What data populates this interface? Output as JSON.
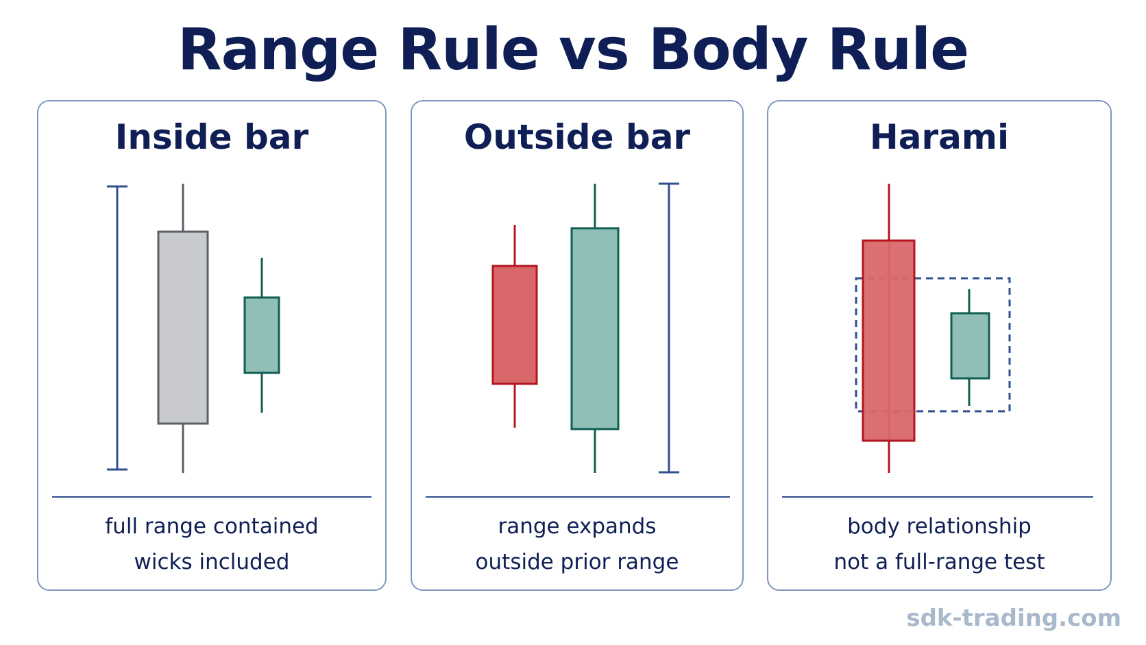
{
  "title": "Range Rule vs Body Rule",
  "colors": {
    "title": "#0f1f55",
    "panel_border": "#7d96c2",
    "range_marker": "#2f4f8f",
    "bear_fill": "#d9676a",
    "bear_stroke": "#b3161e",
    "bull_fill": "#8fbfb6",
    "bull_stroke": "#115e52",
    "neutral_fill": "#c8cacd",
    "neutral_stroke": "#5b5f66",
    "watermark": "#a9b9cc"
  },
  "panels": [
    {
      "title": "Inside bar",
      "caption": [
        "full range contained",
        "wicks included"
      ]
    },
    {
      "title": "Outside bar",
      "caption": [
        "range expands",
        "outside prior range"
      ]
    },
    {
      "title": "Harami",
      "caption": [
        "body relationship",
        "not a full-range test"
      ]
    }
  ],
  "watermark": "sdk-trading.com"
}
